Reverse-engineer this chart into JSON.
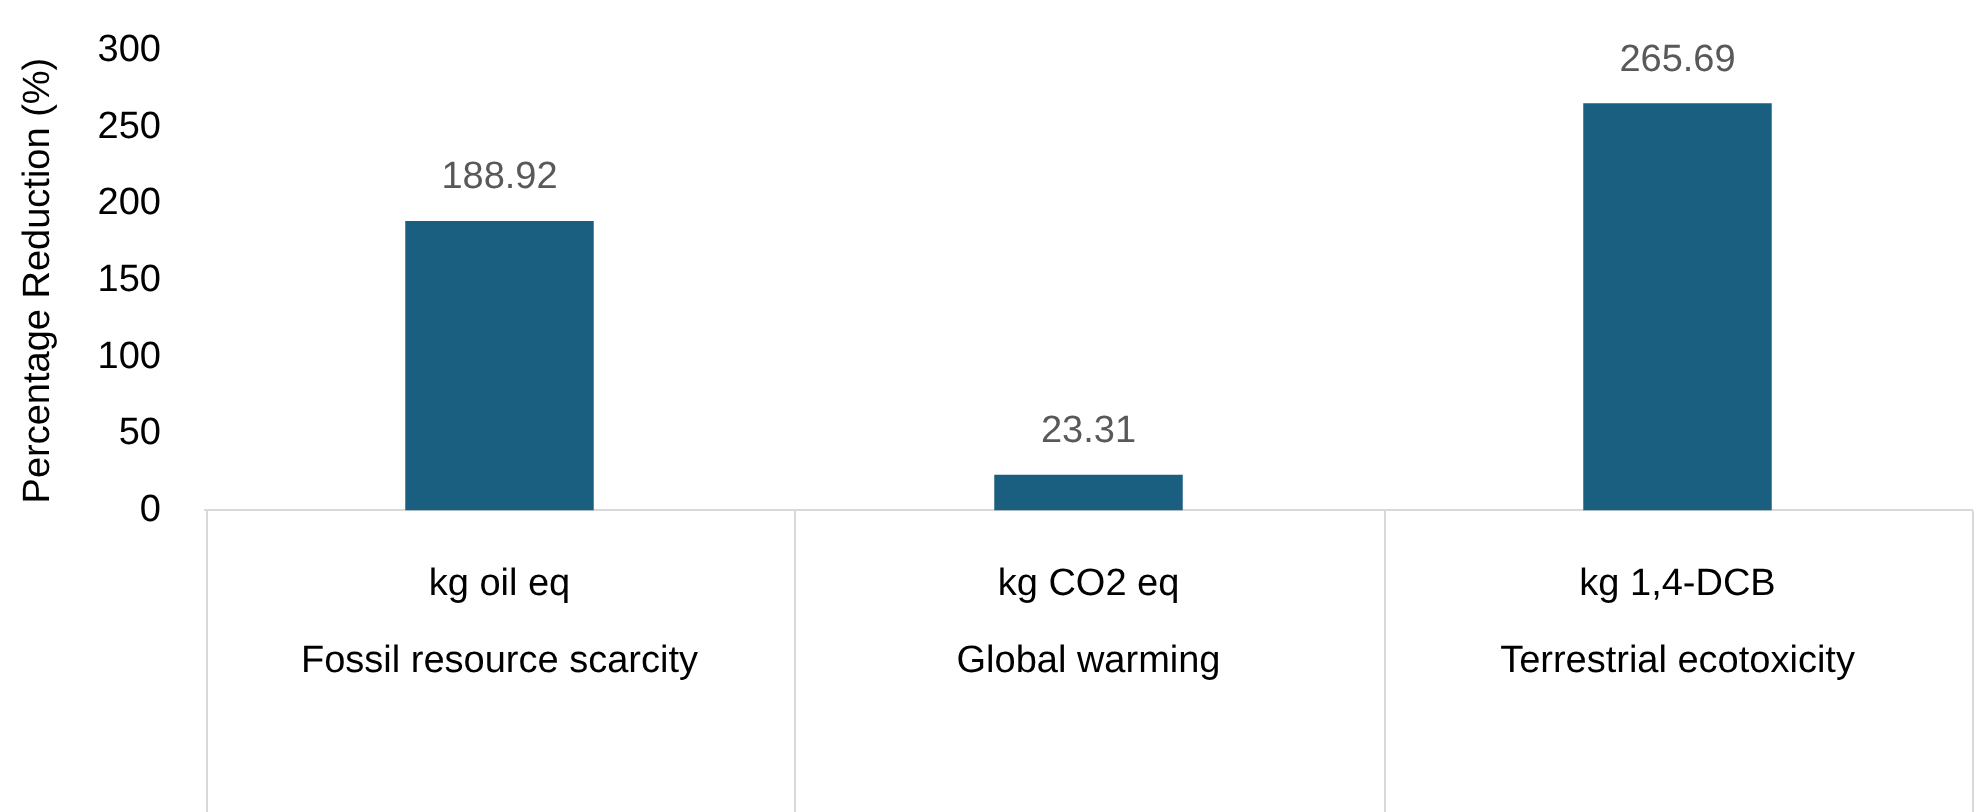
{
  "chart_data": {
    "type": "bar",
    "ylabel": "Percentage Reduction (%)",
    "categories": [
      "Fossil resource scarcity",
      "Global warming",
      "Terrestrial ecotoxicity"
    ],
    "values": [
      188.92,
      23.31,
      265.69
    ],
    "color": "#1a5e80",
    "ylim": [
      0,
      300
    ],
    "yticks": [
      0,
      50,
      100,
      150,
      200,
      250,
      300
    ],
    "grid": false,
    "data_labels": true,
    "legend": false,
    "annotations": [
      "kg oil eq",
      "kg CO2 eq",
      "kg 1,4-DCB"
    ]
  }
}
